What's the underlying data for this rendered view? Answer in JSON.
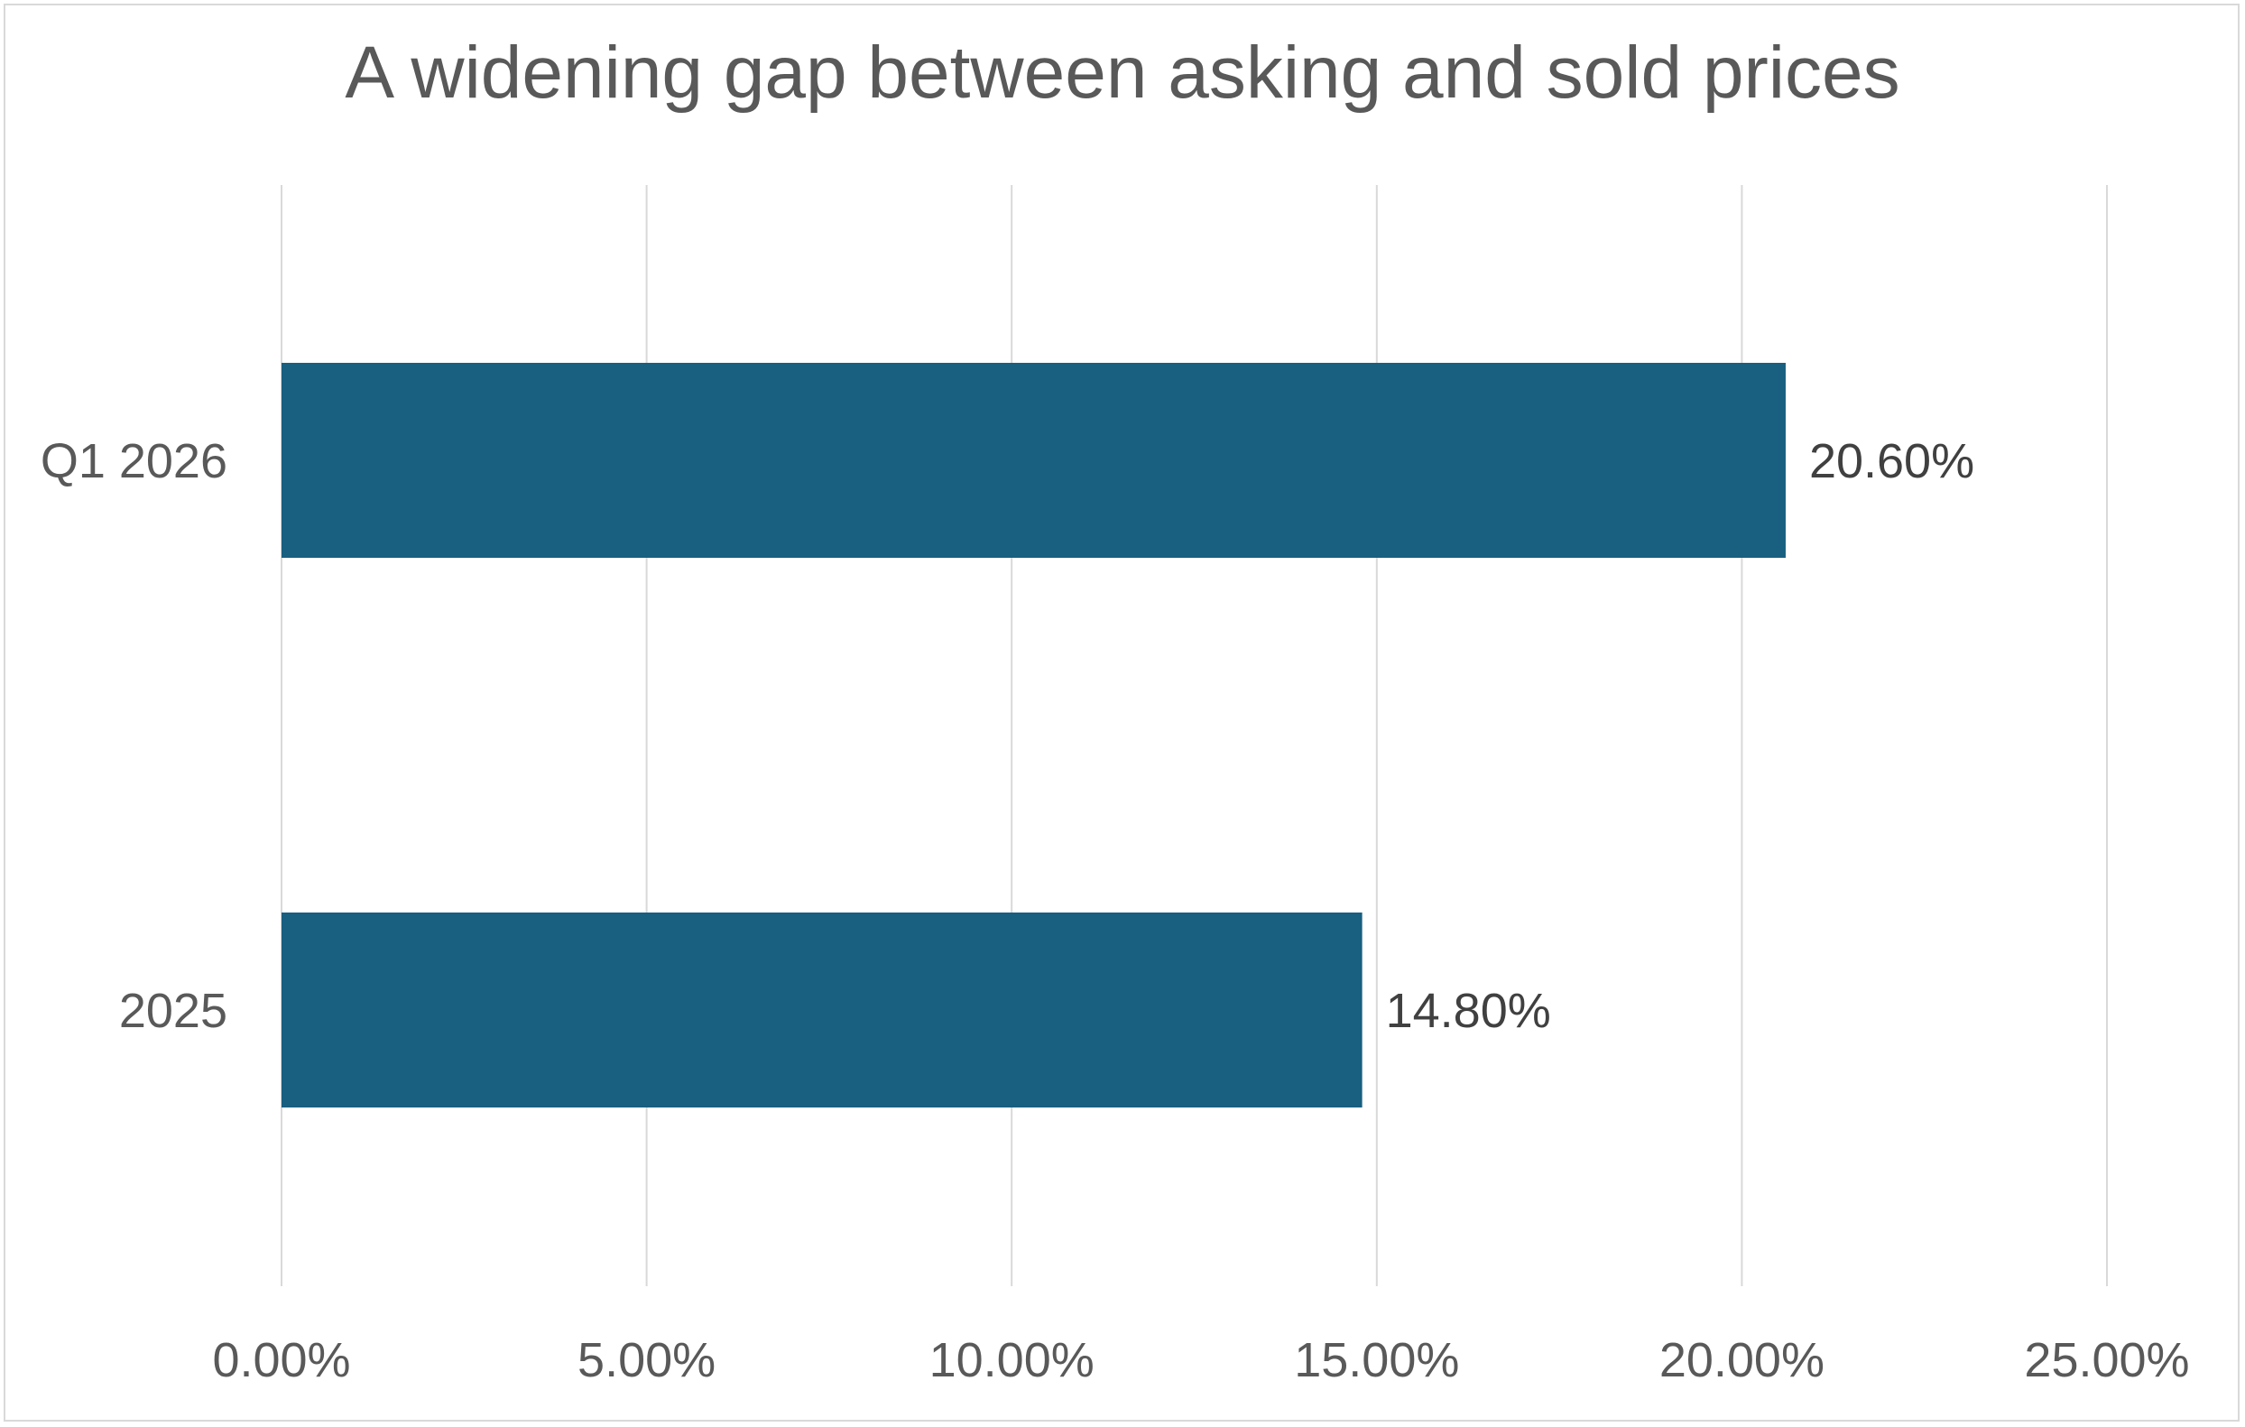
{
  "chart_data": {
    "type": "bar",
    "orientation": "horizontal",
    "title": "A widening gap between asking and sold prices",
    "categories": [
      "Q1 2026",
      "2025"
    ],
    "values": [
      20.6,
      14.8
    ],
    "data_labels": [
      "20.60%",
      "14.80%"
    ],
    "xlabel": "",
    "ylabel": "",
    "xlim": [
      0,
      25
    ],
    "x_ticks": [
      0,
      5,
      10,
      15,
      20,
      25
    ],
    "x_tick_labels": [
      "0.00%",
      "5.00%",
      "10.00%",
      "15.00%",
      "20.00%",
      "25.00%"
    ],
    "grid": "vertical",
    "legend": "none"
  },
  "colors": {
    "bar": "#185f80",
    "gridline": "#d9d9d9",
    "axis_text": "#595959",
    "label_text": "#404040",
    "title_text": "#595959"
  }
}
